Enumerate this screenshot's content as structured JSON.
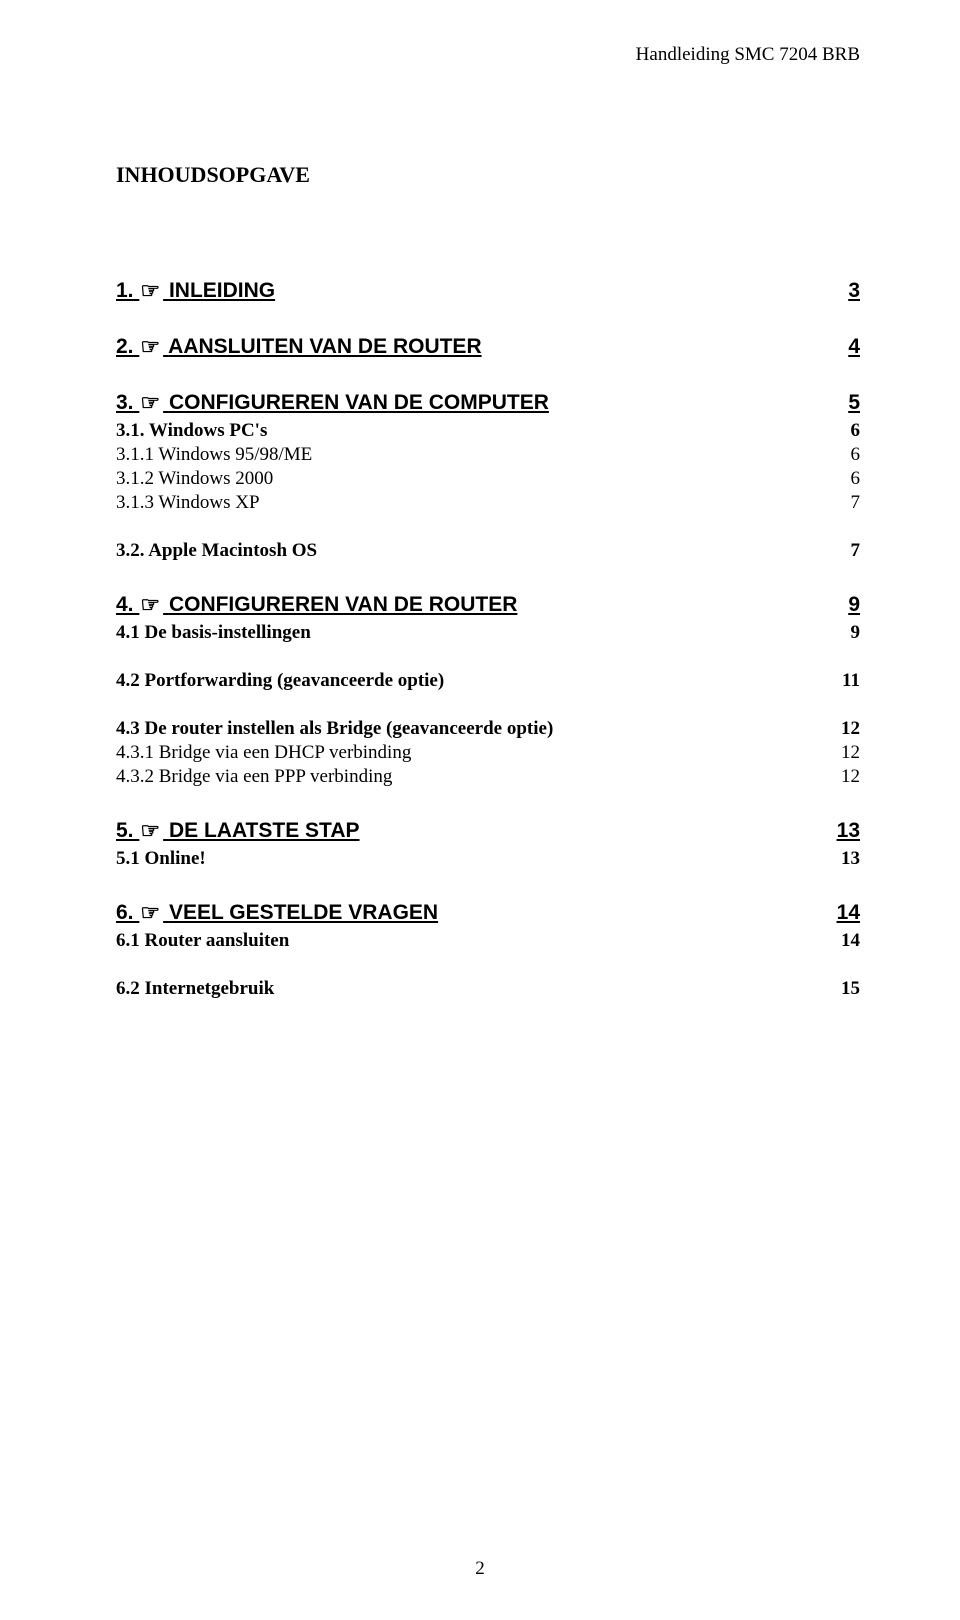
{
  "header": {
    "running_head": "Handleiding SMC 7204 BRB"
  },
  "title": "INHOUDSOPGAVE",
  "hand_glyph": "☞",
  "toc": [
    {
      "level": 1,
      "num": "1.",
      "hand": true,
      "text": "INLEIDING",
      "page": "3"
    },
    {
      "level": 1,
      "num": "2.",
      "hand": true,
      "text": "AANSLUITEN VAN DE ROUTER",
      "page": "4"
    },
    {
      "level": 1,
      "num": "3.",
      "hand": true,
      "text": "CONFIGUREREN VAN DE COMPUTER",
      "page": "5"
    },
    {
      "level": 2,
      "num": "3.1.",
      "text": "Windows PC's",
      "page": "6"
    },
    {
      "level": 3,
      "num": "3.1.1",
      "text": "Windows 95/98/ME",
      "page": "6"
    },
    {
      "level": 3,
      "num": "3.1.2",
      "text": "Windows 2000",
      "page": "6"
    },
    {
      "level": 3,
      "num": "3.1.3",
      "text": "Windows XP",
      "page": "7"
    },
    {
      "level": 2,
      "num": "3.2.",
      "text": "Apple Macintosh OS",
      "page": "7",
      "gap_before": true
    },
    {
      "level": 1,
      "num": "4.",
      "hand": true,
      "text": "CONFIGUREREN VAN DE ROUTER",
      "page": "9"
    },
    {
      "level": 2,
      "num": "4.1",
      "text": "De basis-instellingen",
      "page": "9"
    },
    {
      "level": 2,
      "num": "4.2",
      "text": "Portforwarding (geavanceerde optie)",
      "page": "11",
      "gap_before": true
    },
    {
      "level": 2,
      "num": "4.3",
      "text": "De router instellen als Bridge (geavanceerde optie)",
      "page": "12",
      "gap_before": true
    },
    {
      "level": 3,
      "num": "4.3.1",
      "text": "Bridge via een DHCP verbinding",
      "page": "12"
    },
    {
      "level": 3,
      "num": "4.3.2",
      "text": "Bridge via een PPP verbinding",
      "page": "12"
    },
    {
      "level": 1,
      "num": "5.",
      "hand": true,
      "text": "DE LAATSTE STAP",
      "page": "13"
    },
    {
      "level": 2,
      "num": "5.1",
      "text": "Online!",
      "page": "13"
    },
    {
      "level": 1,
      "num": "6.",
      "hand": true,
      "text": "VEEL GESTELDE VRAGEN",
      "page": "14"
    },
    {
      "level": 2,
      "num": "6.1",
      "text": "Router aansluiten",
      "page": "14"
    },
    {
      "level": 2,
      "num": "6.2",
      "text": "Internetgebruik",
      "page": "15",
      "gap_before": true
    }
  ],
  "footer": {
    "page_number": "2"
  }
}
